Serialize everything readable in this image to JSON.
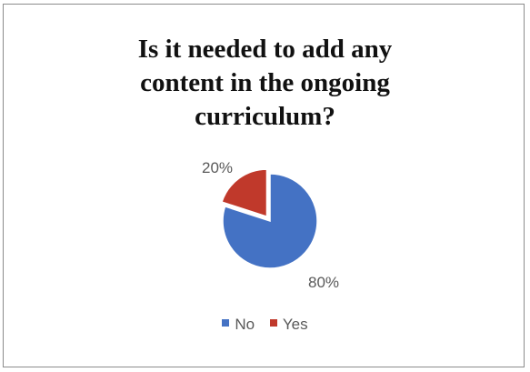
{
  "chart_data": {
    "type": "pie",
    "title": "Is it needed to add any content in the ongoing curriculum?",
    "title_lines": [
      "Is it needed to add any",
      "content in the ongoing",
      "curriculum?"
    ],
    "categories": [
      "No",
      "Yes"
    ],
    "values": [
      80,
      20
    ],
    "data_labels": [
      "80%",
      "20%"
    ],
    "colors": [
      "#4472C4",
      "#C0392B"
    ],
    "exploded": "Yes",
    "legend_position": "bottom"
  }
}
